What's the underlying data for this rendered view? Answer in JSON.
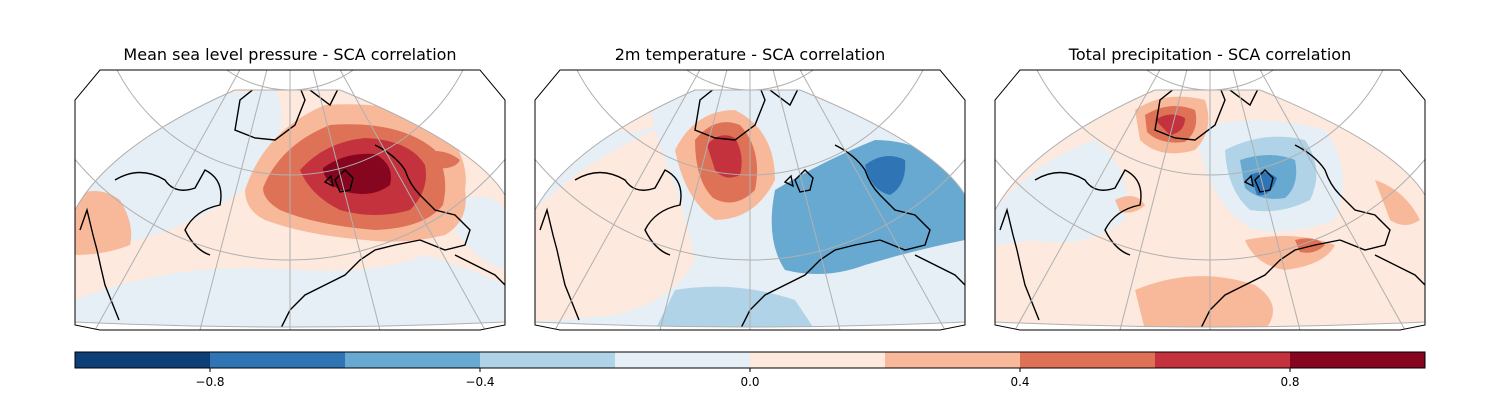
{
  "panels": [
    {
      "title": "Mean sea level pressure - SCA correlation",
      "field": "mslp"
    },
    {
      "title": "2m temperature - SCA correlation",
      "field": "t2m"
    },
    {
      "title": "Total precipitation - SCA correlation",
      "field": "tp"
    }
  ],
  "colorbar": {
    "range": [
      -1.0,
      1.0
    ],
    "levels": [
      -1.0,
      -0.8,
      -0.6,
      -0.4,
      -0.2,
      0.0,
      0.2,
      0.4,
      0.6,
      0.8,
      1.0
    ],
    "colors": [
      "#0d3f77",
      "#2f75b6",
      "#68a9d1",
      "#b0d3e7",
      "#e6eff6",
      "#fde9dd",
      "#f8b99b",
      "#de7257",
      "#c3323d",
      "#86051f"
    ],
    "ticks": [
      -0.8,
      -0.4,
      0.0,
      0.4,
      0.8
    ],
    "tick_labels": [
      "−0.8",
      "−0.4",
      "0.0",
      "0.4",
      "0.8"
    ]
  }
}
